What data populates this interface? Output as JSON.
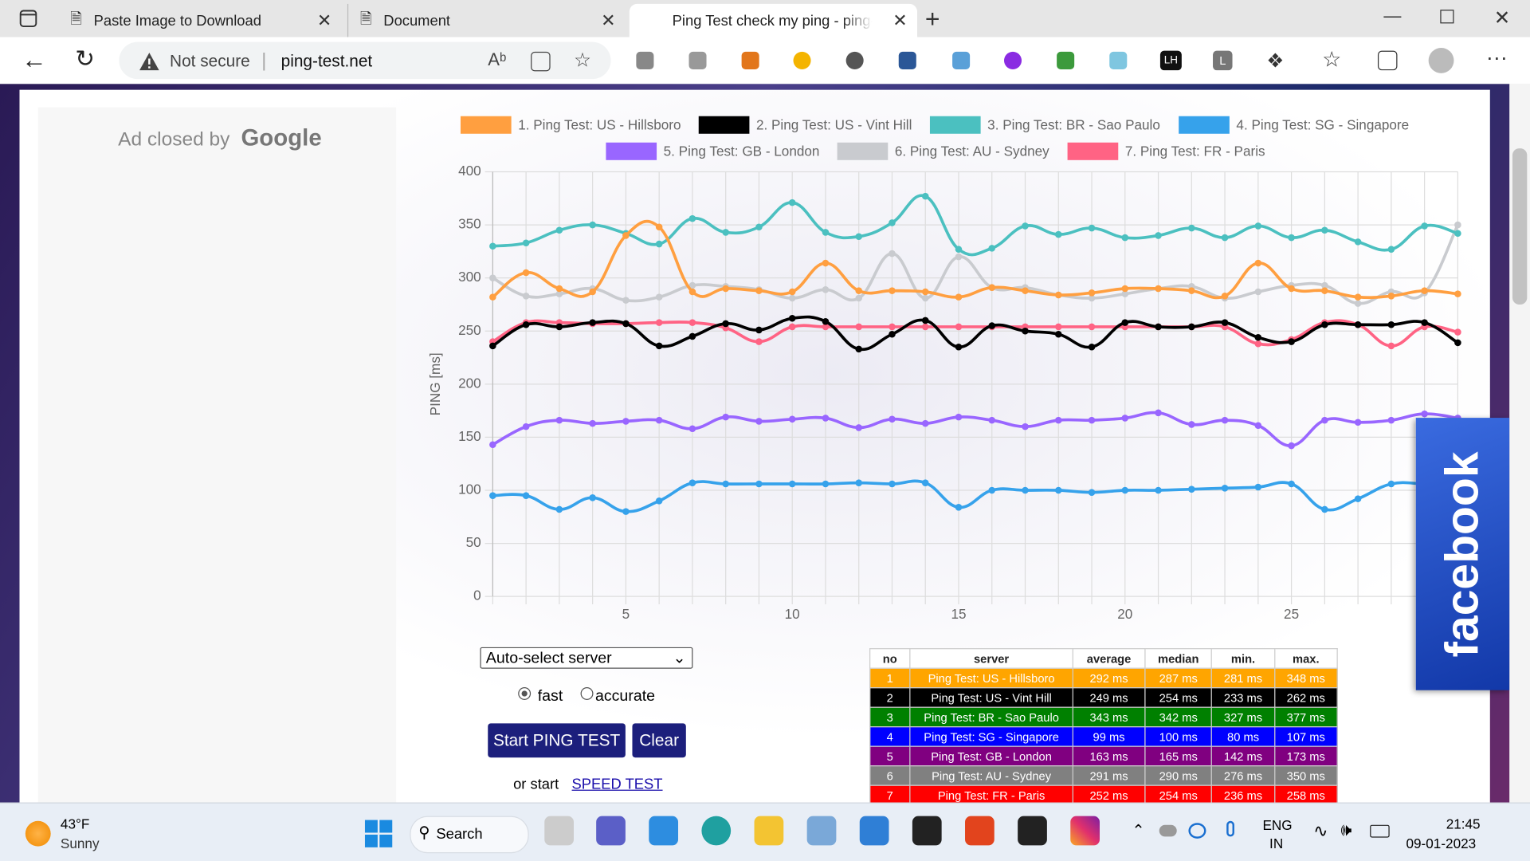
{
  "browser": {
    "tabs": [
      "Paste Image to Download",
      "Document",
      "Ping Test check my ping - ping-t"
    ],
    "security": "Not secure",
    "url": "ping-test.net",
    "extensions": [
      "LH",
      "L"
    ]
  },
  "ad": {
    "text": "Ad closed by",
    "brand": "Google"
  },
  "chart_data": {
    "type": "line",
    "ylabel": "PING [ms]",
    "x": [
      1,
      2,
      3,
      4,
      5,
      6,
      7,
      8,
      9,
      10,
      11,
      12,
      13,
      14,
      15,
      16,
      17,
      18,
      19,
      20,
      21,
      22,
      23,
      24,
      25,
      26,
      27,
      28,
      29,
      30
    ],
    "xlim": [
      1,
      30
    ],
    "xticks": [
      5,
      10,
      15,
      20,
      25
    ],
    "ylim": [
      0,
      400
    ],
    "yticks": [
      0,
      50,
      100,
      150,
      200,
      250,
      300,
      350,
      400
    ],
    "grid": true,
    "series": [
      {
        "name": "1. Ping Test: US - Hillsboro",
        "color": "#ff9f40",
        "values": [
          282,
          305,
          290,
          287,
          340,
          348,
          287,
          290,
          288,
          287,
          314,
          288,
          288,
          287,
          282,
          291,
          288,
          284,
          286,
          290,
          290,
          288,
          283,
          314,
          290,
          288,
          282,
          283,
          288,
          285
        ]
      },
      {
        "name": "2. Ping Test: US - Vint Hill",
        "color": "#000000",
        "values": [
          236,
          256,
          254,
          258,
          257,
          236,
          245,
          257,
          251,
          262,
          259,
          233,
          247,
          260,
          235,
          255,
          250,
          247,
          235,
          258,
          254,
          254,
          258,
          244,
          240,
          256,
          256,
          256,
          258,
          239
        ]
      },
      {
        "name": "3. Ping Test: BR - Sao Paulo",
        "color": "#4bc0c0",
        "values": [
          330,
          333,
          345,
          350,
          342,
          332,
          356,
          343,
          348,
          371,
          343,
          339,
          352,
          377,
          327,
          328,
          349,
          341,
          347,
          338,
          340,
          347,
          338,
          349,
          338,
          345,
          334,
          327,
          349,
          342
        ]
      },
      {
        "name": "4. Ping Test: SG - Singapore",
        "color": "#36a2eb",
        "values": [
          95,
          95,
          82,
          93,
          80,
          90,
          107,
          106,
          106,
          106,
          106,
          107,
          106,
          107,
          84,
          100,
          100,
          100,
          98,
          100,
          100,
          101,
          102,
          103,
          106,
          82,
          92,
          106,
          106,
          105
        ]
      },
      {
        "name": "5. Ping Test: GB - London",
        "color": "#9966ff",
        "values": [
          143,
          160,
          166,
          163,
          165,
          166,
          158,
          169,
          165,
          167,
          168,
          159,
          167,
          163,
          169,
          166,
          160,
          166,
          166,
          168,
          173,
          162,
          166,
          161,
          142,
          166,
          164,
          166,
          172,
          168
        ]
      },
      {
        "name": "6. Ping Test: AU - Sydney",
        "color": "#c9cbcf",
        "values": [
          300,
          283,
          285,
          290,
          279,
          282,
          293,
          292,
          289,
          281,
          289,
          281,
          323,
          281,
          320,
          291,
          291,
          284,
          281,
          285,
          290,
          292,
          281,
          287,
          293,
          293,
          276,
          287,
          286,
          350
        ]
      },
      {
        "name": "7. Ping Test: FR - Paris",
        "color": "#ff6384",
        "values": [
          240,
          258,
          258,
          257,
          257,
          258,
          258,
          253,
          240,
          254,
          254,
          254,
          254,
          254,
          254,
          254,
          254,
          254,
          254,
          254,
          254,
          254,
          254,
          238,
          242,
          258,
          256,
          236,
          254,
          249
        ]
      }
    ]
  },
  "controls": {
    "server_select": "Auto-select server",
    "modes": [
      "fast",
      "accurate"
    ],
    "buttons": [
      "Start PING TEST",
      "Clear"
    ],
    "speed_prefix": "or start",
    "speed_link": "SPEED TEST"
  },
  "table": {
    "columns": [
      "no",
      "server",
      "average",
      "median",
      "min.",
      "max."
    ],
    "rows": [
      {
        "color": "#ffa500",
        "cells": [
          "1",
          "Ping Test: US - Hillsboro",
          "292 ms",
          "287 ms",
          "281 ms",
          "348 ms"
        ]
      },
      {
        "color": "#000000",
        "cells": [
          "2",
          "Ping Test: US - Vint Hill",
          "249 ms",
          "254 ms",
          "233 ms",
          "262 ms"
        ]
      },
      {
        "color": "#008000",
        "cells": [
          "3",
          "Ping Test: BR - Sao Paulo",
          "343 ms",
          "342 ms",
          "327 ms",
          "377 ms"
        ]
      },
      {
        "color": "#0000ff",
        "cells": [
          "4",
          "Ping Test: SG - Singapore",
          "99 ms",
          "100 ms",
          "80 ms",
          "107 ms"
        ]
      },
      {
        "color": "#800080",
        "cells": [
          "5",
          "Ping Test: GB - London",
          "163 ms",
          "165 ms",
          "142 ms",
          "173 ms"
        ]
      },
      {
        "color": "#808080",
        "cells": [
          "6",
          "Ping Test: AU - Sydney",
          "291 ms",
          "290 ms",
          "276 ms",
          "350 ms"
        ]
      },
      {
        "color": "#ff0000",
        "cells": [
          "7",
          "Ping Test: FR - Paris",
          "252 ms",
          "254 ms",
          "236 ms",
          "258 ms"
        ]
      }
    ]
  },
  "facebook": "facebook",
  "taskbar": {
    "temperature": "43°F",
    "weather": "Sunny",
    "search": "Search",
    "language": "ENG",
    "region": "IN",
    "time": "21:45",
    "date": "09-01-2023"
  }
}
